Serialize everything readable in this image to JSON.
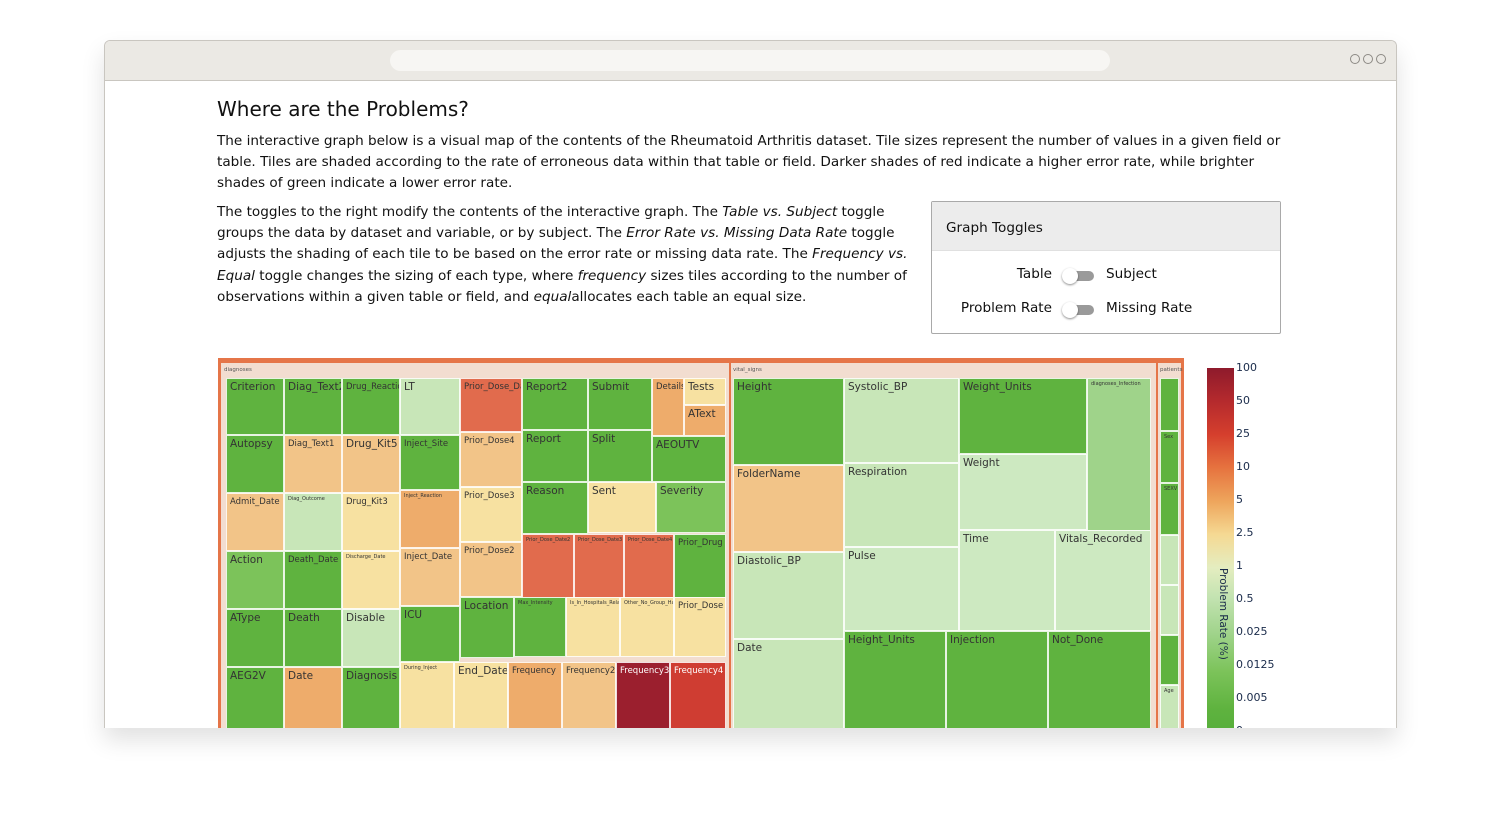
{
  "page": {
    "heading": "Where are the Problems?",
    "intro": "The interactive graph below is a visual map of the contents of the Rheumatoid Arthritis dataset. Tile sizes represent the number of values in a given field or table. Tiles are shaded according to the rate of erroneous data within that table or field. Darker shades of red indicate a higher error rate, while brighter shades of green indicate a lower error rate.",
    "toggles_paragraph": {
      "t1": "The toggles to the right modify the contents of the interactive graph. The ",
      "e1": "Table vs. Subject",
      "t2": " toggle groups the data by dataset and variable, or by subject. The ",
      "e2": "Error Rate vs. Missing Data Rate",
      "t3": " toggle adjusts the shading of each tile to be based on the error rate or missing data rate. The ",
      "e3": "Frequency vs. Equal",
      "t4": " toggle changes the sizing of each type, where ",
      "e4": "frequency",
      "t5": " sizes tiles according to the number of observations within a given table or field, and ",
      "e5": "equal",
      "t6": "allocates each table an equal size."
    }
  },
  "toggles": {
    "title": "Graph Toggles",
    "items": [
      {
        "left": "Table",
        "right": "Subject",
        "on": false
      },
      {
        "left": "Problem Rate",
        "right": "Missing Rate",
        "on": false
      }
    ]
  },
  "colors": {
    "g1": "#5fb33f",
    "g2": "#7cc35a",
    "g3": "#9fd38a",
    "g4": "#c8e6b8",
    "g5": "#cde9c1",
    "y1": "#f7e1a1",
    "o1": "#f2c488",
    "o2": "#eeac6b",
    "o3": "#ea9a5e",
    "r1": "#e16b4d",
    "r2": "#cf3d32",
    "r3": "#9b1f2e",
    "frame": "#e57548"
  },
  "chart_data": {
    "type": "treemap",
    "colorbar_title": "Problem Rate (%)",
    "colorbar_ticks": [
      "100",
      "50",
      "25",
      "10",
      "5",
      "2.5",
      "1",
      "0.5",
      "0.025",
      "0.0125",
      "0.005",
      "0"
    ],
    "groups": [
      {
        "name": "diagnoses",
        "tiles": [
          {
            "label": "Criterion",
            "color": "g1"
          },
          {
            "label": "Diag_Text2",
            "color": "g1"
          },
          {
            "label": "Drug_Reaction",
            "color": "g1"
          },
          {
            "label": "LT",
            "color": "g4"
          },
          {
            "label": "Prior_Dose_Date",
            "color": "r1"
          },
          {
            "label": "Report2",
            "color": "g1"
          },
          {
            "label": "Submit",
            "color": "g1"
          },
          {
            "label": "Details",
            "color": "o2"
          },
          {
            "label": "Tests",
            "color": "y1"
          },
          {
            "label": "AText",
            "color": "o2"
          },
          {
            "label": "Autopsy",
            "color": "g1"
          },
          {
            "label": "Diag_Text1",
            "color": "o1"
          },
          {
            "label": "Drug_Kit5",
            "color": "o1"
          },
          {
            "label": "Inject_Site",
            "color": "g1"
          },
          {
            "label": "Prior_Dose4",
            "color": "o1"
          },
          {
            "label": "Report",
            "color": "g1"
          },
          {
            "label": "Split",
            "color": "g1"
          },
          {
            "label": "AEOUTV",
            "color": "g1"
          },
          {
            "label": "Reason",
            "color": "g1"
          },
          {
            "label": "Sent",
            "color": "y1"
          },
          {
            "label": "Severity",
            "color": "g2"
          },
          {
            "label": "Admit_Date",
            "color": "o1"
          },
          {
            "label": "Diag_Outcome",
            "color": "g4"
          },
          {
            "label": "Drug_Kit3",
            "color": "y1"
          },
          {
            "label": "Inject_Reaction",
            "color": "o2"
          },
          {
            "label": "Prior_Dose3",
            "color": "y1"
          },
          {
            "label": "Prior_Dose_Date2",
            "color": "r1"
          },
          {
            "label": "Prior_Dose_Date3",
            "color": "r1"
          },
          {
            "label": "Prior_Dose_Date4",
            "color": "r1"
          },
          {
            "label": "Prior_Drug",
            "color": "g1"
          },
          {
            "label": "Action",
            "color": "g2"
          },
          {
            "label": "Death_Date",
            "color": "g1"
          },
          {
            "label": "Discharge_Date",
            "color": "y1"
          },
          {
            "label": "Inject_Date",
            "color": "o1"
          },
          {
            "label": "Prior_Dose2",
            "color": "o1"
          },
          {
            "label": "Location",
            "color": "g1"
          },
          {
            "label": "Max_Intensity",
            "color": "g1"
          },
          {
            "label": "Is_In_Hospitals_Related_Drug_Use",
            "color": "y1"
          },
          {
            "label": "Other_No_Group_Has_Reaction",
            "color": "y1"
          },
          {
            "label": "Prior_Dose",
            "color": "y1"
          },
          {
            "label": "AType",
            "color": "g1"
          },
          {
            "label": "Death",
            "color": "g1"
          },
          {
            "label": "Disable",
            "color": "g4"
          },
          {
            "label": "ICU",
            "color": "g1"
          },
          {
            "label": "AEG2V",
            "color": "g1"
          },
          {
            "label": "Date",
            "color": "o2"
          },
          {
            "label": "Diagnosis",
            "color": "g1"
          },
          {
            "label": "During_Inject",
            "color": "y1"
          },
          {
            "label": "End_Date",
            "color": "y1"
          },
          {
            "label": "Frequency",
            "color": "o2"
          },
          {
            "label": "Frequency2",
            "color": "o1"
          },
          {
            "label": "Frequency3",
            "color": "r3"
          },
          {
            "label": "Frequency4",
            "color": "r2"
          }
        ]
      },
      {
        "name": "vital_signs",
        "tiles": [
          {
            "label": "Height",
            "color": "g1"
          },
          {
            "label": "Systolic_BP",
            "color": "g4"
          },
          {
            "label": "Weight_Units",
            "color": "g1"
          },
          {
            "label": "diagnoses_Infection",
            "color": "g3"
          },
          {
            "label": "FolderName",
            "color": "o1"
          },
          {
            "label": "Respiration",
            "color": "g4"
          },
          {
            "label": "Weight",
            "color": "g5"
          },
          {
            "label": "Diastolic_BP",
            "color": "g4"
          },
          {
            "label": "Pulse",
            "color": "g5"
          },
          {
            "label": "Time",
            "color": "g5"
          },
          {
            "label": "Vitals_Recorded",
            "color": "g5"
          },
          {
            "label": "Date",
            "color": "g4"
          },
          {
            "label": "Height_Units",
            "color": "g1"
          },
          {
            "label": "Injection",
            "color": "g1"
          },
          {
            "label": "Not_Done",
            "color": "g1"
          }
        ]
      },
      {
        "name": "patients",
        "tiles": [
          {
            "label": "",
            "color": "g1"
          },
          {
            "label": "Sex",
            "color": "g1"
          },
          {
            "label": "SEXV",
            "color": "g1"
          },
          {
            "label": "",
            "color": "g4"
          },
          {
            "label": "",
            "color": "g4"
          },
          {
            "label": "",
            "color": "g1"
          },
          {
            "label": "Age",
            "color": "g4"
          }
        ]
      }
    ]
  }
}
